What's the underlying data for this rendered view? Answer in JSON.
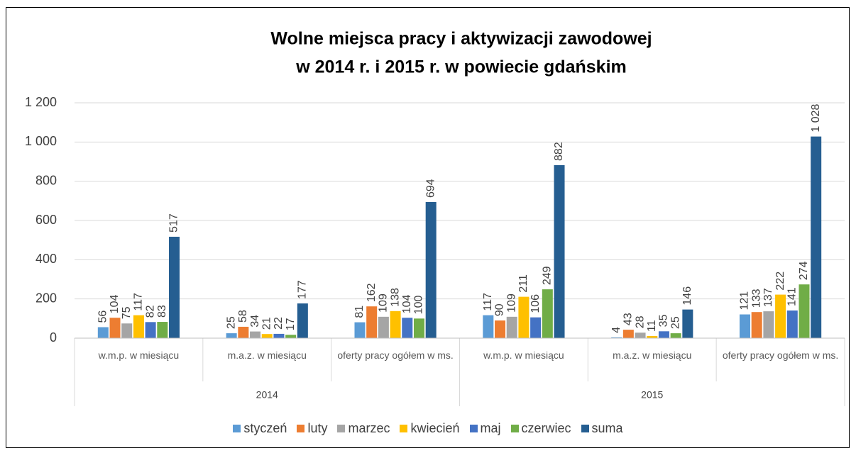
{
  "chart_data": {
    "type": "bar",
    "title": [
      "Wolne miejsca pracy i aktywizacji zawodowej",
      "w 2014 r. i 2015 r. w powiecie gdańskim"
    ],
    "groups": [
      {
        "label": "2014",
        "categories": [
          "w.m.p. w miesiącu",
          "m.a.z. w miesiącu",
          "oferty pracy ogółem w ms."
        ]
      },
      {
        "label": "2015",
        "categories": [
          "w.m.p. w miesiącu",
          "m.a.z. w miesiącu",
          "oferty pracy ogółem w ms."
        ]
      }
    ],
    "series": [
      {
        "name": "styczeń",
        "color": "#5b9bd5",
        "values": [
          56,
          25,
          81,
          117,
          4,
          121
        ]
      },
      {
        "name": "luty",
        "color": "#ed7d31",
        "values": [
          104,
          58,
          162,
          90,
          43,
          133
        ]
      },
      {
        "name": "marzec",
        "color": "#a5a5a5",
        "values": [
          75,
          34,
          109,
          109,
          28,
          137
        ]
      },
      {
        "name": "kwiecień",
        "color": "#ffc000",
        "values": [
          117,
          21,
          138,
          211,
          11,
          222
        ]
      },
      {
        "name": "maj",
        "color": "#4472c4",
        "values": [
          82,
          22,
          104,
          106,
          35,
          141
        ]
      },
      {
        "name": "czerwiec",
        "color": "#70ad47",
        "values": [
          83,
          17,
          100,
          249,
          25,
          274
        ]
      },
      {
        "name": "suma",
        "color": "#255e91",
        "values": [
          517,
          177,
          694,
          882,
          146,
          1028
        ],
        "value_labels": [
          "517",
          "177",
          "694",
          "882",
          "146",
          "1 028"
        ]
      }
    ],
    "ylim": [
      0,
      1200
    ],
    "yticks": [
      0,
      200,
      400,
      600,
      800,
      {
        "value": 1000,
        "label": "1 000"
      },
      {
        "value": 1200,
        "label": "1 200"
      }
    ],
    "grid": true,
    "legend": "bottom"
  }
}
